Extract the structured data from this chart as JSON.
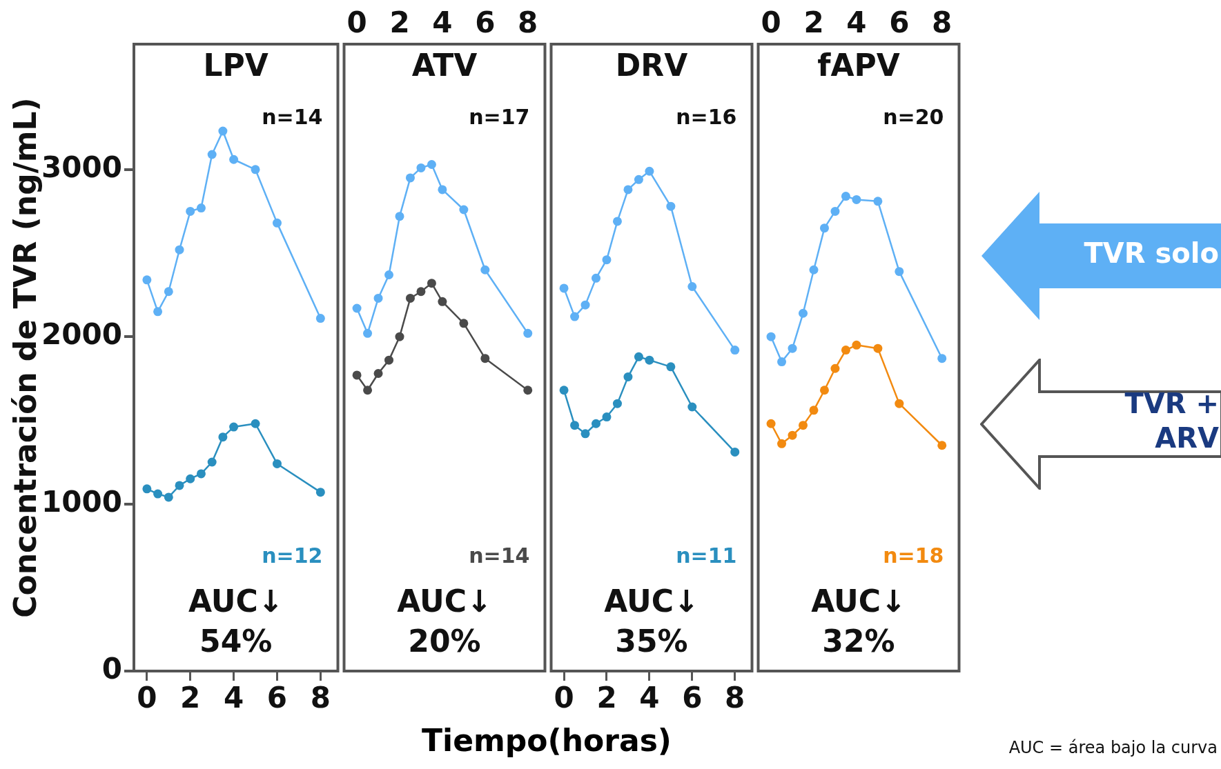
{
  "chart_data": [
    {
      "type": "line",
      "title": "LPV",
      "ylabel": "Concentración de TVR (ng/mL)",
      "xlabel": "Tiempo(horas)",
      "x": [
        0,
        0.5,
        1,
        1.5,
        2,
        2.5,
        3,
        3.5,
        4,
        5,
        6,
        8
      ],
      "xlim": [
        -0.6,
        8.8
      ],
      "xticks": [
        0,
        2,
        4,
        6,
        8
      ],
      "ylim": [
        0,
        3750
      ],
      "yticks": [
        0,
        1000,
        2000,
        3000
      ],
      "marker": "circle",
      "annotations": [
        "n=14",
        "n=12",
        "AUC↓",
        "54%"
      ],
      "series": [
        {
          "color": "#5eb0f5",
          "values": [
            2340,
            2150,
            2270,
            2520,
            2750,
            2770,
            3090,
            3230,
            3060,
            3000,
            2680,
            2110
          ]
        },
        {
          "color": "#2a8fbf",
          "values": [
            1090,
            1060,
            1040,
            1110,
            1150,
            1180,
            1250,
            1400,
            1460,
            1480,
            1240,
            1070
          ]
        }
      ]
    },
    {
      "type": "line",
      "title": "ATV",
      "x": [
        0,
        0.5,
        1,
        1.5,
        2,
        2.5,
        3,
        3.5,
        4,
        5,
        6,
        8
      ],
      "xlim": [
        -0.6,
        8.8
      ],
      "xticks": [
        0,
        2,
        4,
        6,
        8
      ],
      "ylim": [
        0,
        3750
      ],
      "yticks": [
        0,
        1000,
        2000,
        3000
      ],
      "tick_labels": "x",
      "marker": "circle",
      "annotations": [
        "n=17",
        "n=14",
        "AUC↓",
        "20%"
      ],
      "series": [
        {
          "color": "#5eb0f5",
          "values": [
            2170,
            2020,
            2230,
            2370,
            2720,
            2950,
            3010,
            3030,
            2880,
            2760,
            2400,
            2020
          ]
        },
        {
          "color": "#4a4a4a",
          "values": [
            1770,
            1680,
            1780,
            1860,
            2000,
            2230,
            2270,
            2320,
            2210,
            2080,
            1870,
            1680
          ]
        }
      ]
    },
    {
      "type": "line",
      "title": "DRV",
      "x": [
        0,
        0.5,
        1,
        1.5,
        2,
        2.5,
        3,
        3.5,
        4,
        5,
        6,
        8
      ],
      "xlim": [
        -0.6,
        8.8
      ],
      "xticks": [
        0,
        2,
        4,
        6,
        8
      ],
      "ylim": [
        0,
        3750
      ],
      "yticks": [
        0,
        1000,
        2000,
        3000
      ],
      "tick_labels": "x",
      "marker": "circle",
      "annotations": [
        "n=16",
        "n=11",
        "AUC↓",
        "35%"
      ],
      "series": [
        {
          "color": "#5eb0f5",
          "values": [
            2290,
            2120,
            2190,
            2350,
            2460,
            2690,
            2880,
            2940,
            2990,
            2780,
            2300,
            1920
          ]
        },
        {
          "color": "#2a8fbf",
          "values": [
            1680,
            1470,
            1420,
            1480,
            1520,
            1600,
            1760,
            1880,
            1860,
            1820,
            1580,
            1310
          ]
        }
      ]
    },
    {
      "type": "line",
      "title": "fAPV",
      "x": [
        0,
        0.5,
        1,
        1.5,
        2,
        2.5,
        3,
        3.5,
        4,
        5,
        6,
        8
      ],
      "xlim": [
        -0.6,
        8.8
      ],
      "xticks": [
        0,
        2,
        4,
        6,
        8
      ],
      "ylim": [
        0,
        3750
      ],
      "yticks": [
        0,
        1000,
        2000,
        3000
      ],
      "tick_labels": "x",
      "marker": "circle",
      "legend": "right",
      "annotations": [
        "n=20",
        "n=18",
        "AUC↓",
        "32%",
        "AUC = área bajo la curva"
      ],
      "series": [
        {
          "name": "TVR solo",
          "color": "#5eb0f5",
          "values": [
            2000,
            1850,
            1930,
            2140,
            2400,
            2650,
            2750,
            2840,
            2820,
            2810,
            2390,
            1870
          ]
        },
        {
          "name": "TVR + ARV",
          "color": "#f28a10",
          "values": [
            1480,
            1360,
            1410,
            1470,
            1560,
            1680,
            1810,
            1920,
            1950,
            1930,
            1600,
            1350
          ]
        }
      ]
    }
  ]
}
